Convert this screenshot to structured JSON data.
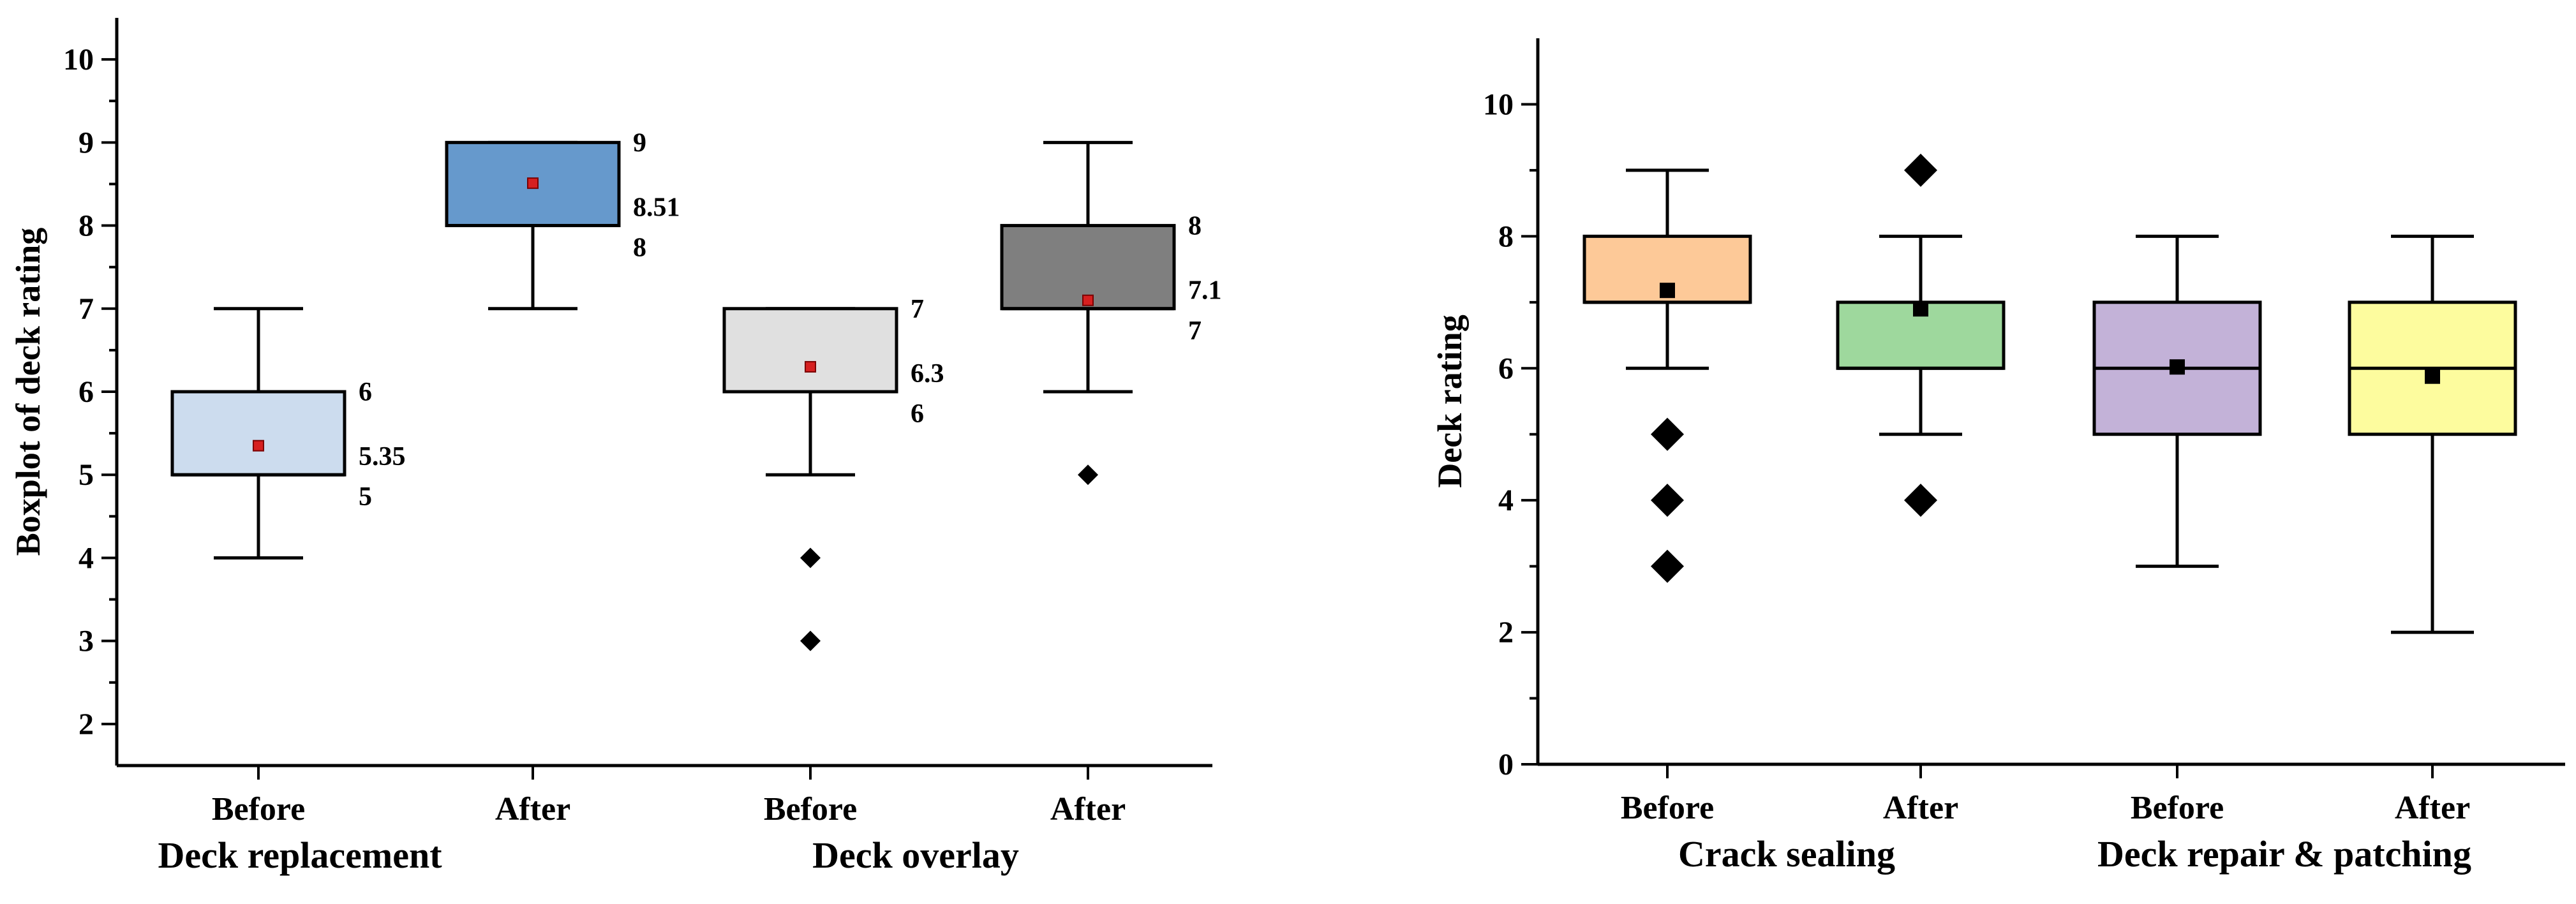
{
  "chart_data": [
    {
      "type": "box",
      "ylabel": "Boxplot of deck rating",
      "ylim": [
        1.5,
        10.5
      ],
      "yticks": [
        2,
        3,
        4,
        5,
        6,
        7,
        8,
        9,
        10
      ],
      "groups": [
        "Deck replacement",
        "Deck overlay"
      ],
      "boxes": [
        {
          "label": "Before",
          "group": 0,
          "whisker_low": 4,
          "q1": 5,
          "median": 5,
          "q3": 6,
          "whisker_high": 7,
          "mean": 5.35,
          "outliers": [],
          "color": "#ccdcee",
          "annotations": {
            "upper": "6",
            "mean": "5.35",
            "lower": "5"
          }
        },
        {
          "label": "After",
          "group": 0,
          "whisker_low": 7,
          "q1": 8,
          "median": 8,
          "q3": 9,
          "whisker_high": 9,
          "mean": 8.51,
          "outliers": [],
          "color": "#6699cc",
          "annotations": {
            "upper": "9",
            "mean": "8.51",
            "lower": "8"
          }
        },
        {
          "label": "Before",
          "group": 1,
          "whisker_low": 5,
          "q1": 6,
          "median": 6,
          "q3": 7,
          "whisker_high": 7,
          "mean": 6.3,
          "outliers": [
            4,
            3
          ],
          "color": "#e0e0e0",
          "annotations": {
            "upper": "7",
            "mean": "6.3",
            "lower": "6"
          }
        },
        {
          "label": "After",
          "group": 1,
          "whisker_low": 6,
          "q1": 7,
          "median": 7,
          "q3": 8,
          "whisker_high": 9,
          "mean": 7.1,
          "outliers": [
            5
          ],
          "color": "#7f7f7f",
          "annotations": {
            "upper": "8",
            "mean": "7.1",
            "lower": "7"
          }
        }
      ]
    },
    {
      "type": "box",
      "ylabel": "Deck rating",
      "ylim": [
        0,
        11
      ],
      "yticks": [
        0,
        2,
        4,
        6,
        8,
        10
      ],
      "groups": [
        "Crack sealing",
        "Deck repair & patching"
      ],
      "boxes": [
        {
          "label": "Before",
          "group": 0,
          "whisker_low": 6,
          "q1": 7,
          "median": 7,
          "q3": 8,
          "whisker_high": 9,
          "mean": 7.18,
          "outliers": [
            5,
            4,
            3
          ],
          "color": "#fdc998"
        },
        {
          "label": "After",
          "group": 0,
          "whisker_low": 5,
          "q1": 6,
          "median": 6,
          "q3": 7,
          "whisker_high": 8,
          "mean": 6.9,
          "outliers": [
            9,
            4
          ],
          "color": "#9ed89d"
        },
        {
          "label": "Before",
          "group": 1,
          "whisker_low": 3,
          "q1": 5,
          "median": 6,
          "q3": 7,
          "whisker_high": 8,
          "mean": 6.02,
          "outliers": [],
          "color": "#c3b2d8"
        },
        {
          "label": "After",
          "group": 1,
          "whisker_low": 2,
          "q1": 5,
          "median": 6,
          "q3": 7,
          "whisker_high": 8,
          "mean": 5.88,
          "outliers": [],
          "color": "#fdfc9e"
        }
      ]
    }
  ]
}
